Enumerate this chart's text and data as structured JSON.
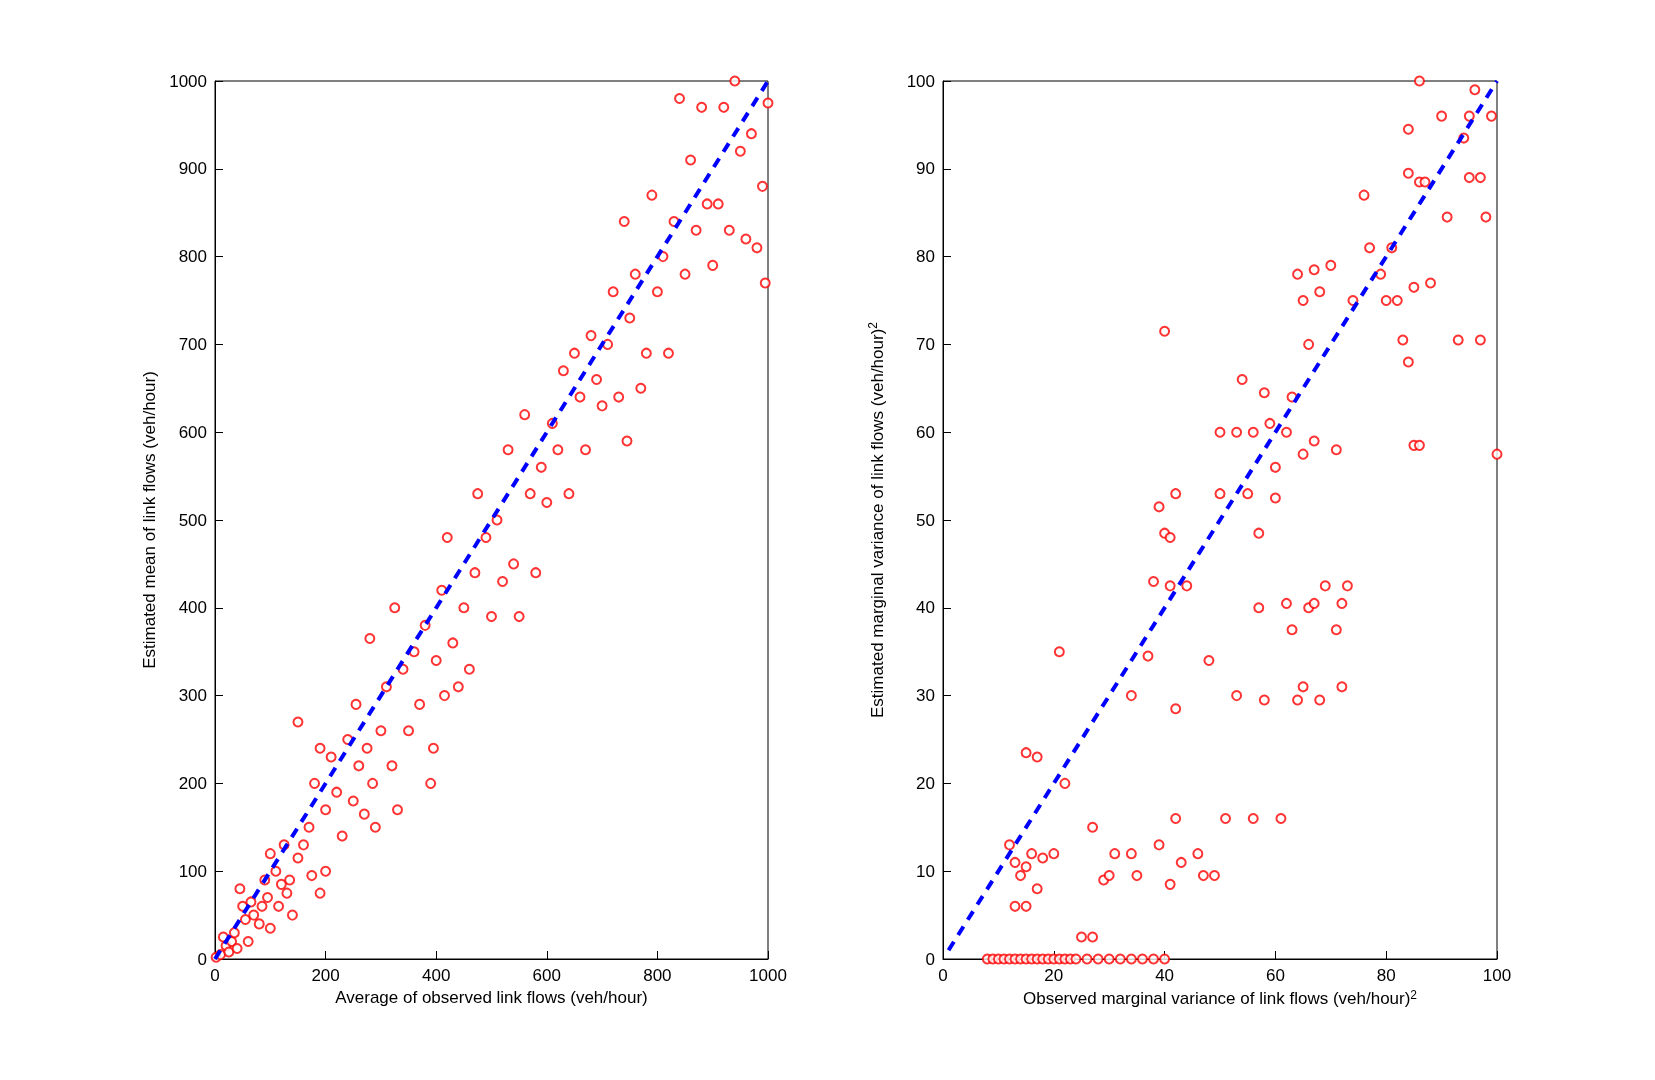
{
  "chart_data": [
    {
      "type": "scatter",
      "xlabel": "Average of observed link flows (veh/hour)",
      "ylabel": "Estimated mean of link flows (veh/hour)",
      "xlim": [
        0,
        1000
      ],
      "ylim": [
        0,
        1000
      ],
      "xticks": [
        0,
        200,
        400,
        600,
        800,
        1000
      ],
      "yticks": [
        0,
        100,
        200,
        300,
        400,
        500,
        600,
        700,
        800,
        900,
        1000
      ],
      "series": [
        {
          "type": "scatter",
          "marker": "circle",
          "color": "#ff0000",
          "x": [
            2,
            10,
            15,
            20,
            25,
            30,
            35,
            40,
            45,
            50,
            55,
            60,
            65,
            70,
            80,
            85,
            90,
            95,
            100,
            100,
            110,
            115,
            120,
            125,
            130,
            135,
            140,
            150,
            150,
            160,
            170,
            175,
            180,
            190,
            190,
            200,
            200,
            210,
            220,
            230,
            240,
            250,
            255,
            260,
            270,
            275,
            280,
            285,
            290,
            300,
            310,
            320,
            325,
            330,
            340,
            350,
            360,
            370,
            380,
            390,
            395,
            400,
            410,
            415,
            420,
            430,
            440,
            450,
            460,
            470,
            475,
            490,
            500,
            510,
            520,
            530,
            540,
            550,
            560,
            570,
            580,
            590,
            600,
            610,
            620,
            630,
            640,
            650,
            660,
            670,
            680,
            690,
            700,
            710,
            720,
            730,
            740,
            745,
            750,
            760,
            770,
            780,
            790,
            800,
            810,
            820,
            830,
            840,
            850,
            860,
            870,
            880,
            890,
            900,
            910,
            920,
            930,
            940,
            950,
            960,
            970,
            980,
            990,
            995,
            1000
          ],
          "values": [
            2,
            5,
            25,
            15,
            8,
            20,
            30,
            12,
            80,
            60,
            45,
            20,
            65,
            50,
            40,
            60,
            90,
            70,
            120,
            35,
            100,
            60,
            85,
            130,
            75,
            90,
            50,
            270,
            115,
            130,
            150,
            95,
            200,
            75,
            240,
            170,
            100,
            230,
            190,
            140,
            250,
            180,
            290,
            220,
            165,
            240,
            365,
            200,
            150,
            260,
            310,
            220,
            400,
            170,
            330,
            260,
            350,
            290,
            380,
            200,
            240,
            340,
            420,
            300,
            480,
            360,
            310,
            400,
            330,
            440,
            530,
            480,
            390,
            500,
            430,
            580,
            450,
            390,
            620,
            530,
            440,
            560,
            520,
            610,
            580,
            670,
            530,
            690,
            640,
            580,
            710,
            660,
            630,
            700,
            760,
            640,
            840,
            590,
            730,
            780,
            650,
            690,
            870,
            760,
            800,
            690,
            840,
            980,
            780,
            910,
            830,
            970,
            860,
            790,
            860,
            970,
            830,
            1000,
            920,
            820,
            940,
            810,
            880,
            770,
            975
          ]
        },
        {
          "type": "line",
          "marker": "none",
          "line_style": "dashed",
          "color": "#0000ff",
          "x": [
            0,
            1000
          ],
          "values": [
            0,
            1000
          ]
        }
      ]
    },
    {
      "type": "scatter",
      "xlabel": "Observed marginal variance of link flows (veh/hour)$^{2}$",
      "ylabel": "Estimated marginal variance of link flows (veh/hour)$^{2}$",
      "xlim": [
        0,
        100
      ],
      "ylim": [
        0,
        100
      ],
      "xticks": [
        0,
        20,
        40,
        60,
        80,
        100
      ],
      "yticks": [
        0,
        10,
        20,
        30,
        40,
        50,
        60,
        70,
        80,
        90,
        100
      ],
      "series": [
        {
          "type": "scatter",
          "marker": "circle",
          "color": "#ff0000",
          "x": [
            8,
            9,
            10,
            11,
            12,
            13,
            14,
            15,
            16,
            17,
            18,
            19,
            20,
            21,
            22,
            23,
            24,
            26,
            28,
            30,
            32,
            34,
            36,
            38,
            40,
            12,
            13,
            13,
            14,
            15,
            15,
            15,
            16,
            17,
            17,
            18,
            20,
            21,
            22,
            25,
            27,
            27,
            29,
            30,
            31,
            34,
            34,
            35,
            37,
            38,
            39,
            39,
            40,
            40,
            41,
            41,
            41,
            42,
            42,
            42,
            43,
            44,
            46,
            47,
            48,
            49,
            50,
            50,
            51,
            53,
            53,
            54,
            55,
            56,
            56,
            57,
            57,
            58,
            58,
            59,
            60,
            60,
            61,
            62,
            62,
            63,
            63,
            64,
            64,
            65,
            65,
            65,
            66,
            66,
            67,
            67,
            67,
            68,
            68,
            69,
            70,
            71,
            71,
            72,
            72,
            73,
            74,
            76,
            77,
            79,
            80,
            81,
            82,
            83,
            84,
            84,
            84,
            85,
            85,
            86,
            86,
            86,
            87,
            88,
            90,
            91,
            93,
            94,
            95,
            95,
            96,
            97,
            97,
            98,
            99,
            100
          ],
          "values": [
            0,
            0,
            0,
            0,
            0,
            0,
            0,
            0,
            0,
            0,
            0,
            0,
            0,
            0,
            0,
            0,
            0,
            0,
            0,
            0,
            0,
            0,
            0,
            0,
            0,
            13,
            6,
            11,
            9.5,
            6,
            10.5,
            23.5,
            12,
            8,
            23,
            11.5,
            12,
            35,
            20,
            2.5,
            2.5,
            15,
            9,
            9.5,
            12,
            30,
            12,
            9.5,
            34.5,
            43,
            13,
            51.5,
            48.5,
            71.5,
            48,
            42.5,
            8.5,
            16,
            28.5,
            53,
            11,
            42.5,
            12,
            9.5,
            34,
            9.5,
            60,
            53,
            16,
            60,
            30,
            66,
            53,
            60,
            16,
            40,
            48.5,
            29.5,
            64.5,
            61,
            56,
            52.5,
            16,
            60,
            40.5,
            37.5,
            64,
            78,
            29.5,
            75,
            57.5,
            31,
            40,
            70,
            78.5,
            59,
            40.5,
            29.5,
            76,
            42.5,
            79,
            58,
            37.5,
            31,
            40.5,
            42.5,
            75,
            87,
            81,
            78,
            75,
            81,
            75,
            70.5,
            89.5,
            94.5,
            68,
            58.5,
            76.5,
            100,
            88.5,
            58.5,
            88.5,
            77,
            96,
            84.5,
            70.5,
            93.5,
            89,
            96,
            99,
            70.5,
            89,
            84.5,
            96,
            57.5
          ]
        },
        {
          "type": "line",
          "marker": "none",
          "line_style": "dashed",
          "color": "#0000ff",
          "x": [
            1,
            100
          ],
          "values": [
            1,
            100
          ]
        }
      ]
    }
  ]
}
